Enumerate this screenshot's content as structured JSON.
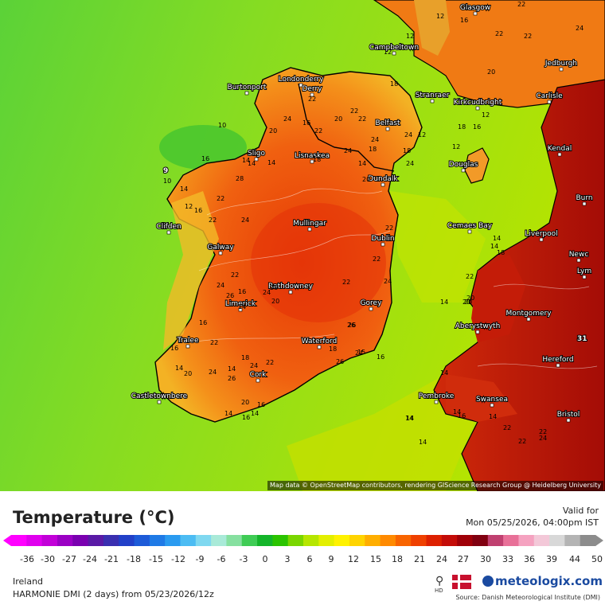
{
  "legend": {
    "title": "Temperature (°C)",
    "valid_label": "Valid for",
    "valid_time": "Mon 05/25/2026, 04:00pm IST",
    "ticks": [
      "-36",
      "-30",
      "-27",
      "-24",
      "-21",
      "-18",
      "-15",
      "-12",
      "-9",
      "-6",
      "-3",
      "0",
      "3",
      "6",
      "9",
      "12",
      "15",
      "18",
      "21",
      "24",
      "27",
      "30",
      "33",
      "36",
      "39",
      "44",
      "50"
    ],
    "colors": [
      "#ff00ff",
      "#e000ee",
      "#c200d8",
      "#9b00c4",
      "#7a00b0",
      "#5a1aa6",
      "#3a2fb0",
      "#2240c8",
      "#1d5bd8",
      "#1f7ae6",
      "#2a9bf0",
      "#4cbcf3",
      "#7fd8f0",
      "#a9ead8",
      "#86e0a0",
      "#3fcc55",
      "#14b52a",
      "#2bc400",
      "#7ad600",
      "#b6e600",
      "#e3ef00",
      "#fff200",
      "#ffd400",
      "#ffae00",
      "#ff8a00",
      "#f86400",
      "#ef4000",
      "#dd2000",
      "#c40c08",
      "#a00008",
      "#800010",
      "#c04070",
      "#e87098",
      "#f5a2c0",
      "#f3c8d8",
      "#d8d8d8",
      "#b4b4b4",
      "#8c8c8c"
    ],
    "region": "Ireland",
    "model": "HARMONIE DMI (2 days)  from  05/23/2026/12z",
    "hd_label": "HD",
    "brand": "meteologix.com",
    "source": "Source: Danish Meteorological Institute (DMI)"
  },
  "map": {
    "attribution": "Map data © OpenStreetMap contributors, rendering GIScience Research Group @ Heidelberg University",
    "places": [
      {
        "name": "Glasgow"
      },
      {
        "name": "Campbeltown"
      },
      {
        "name": "Jedburgh"
      },
      {
        "name": "Burtonport"
      },
      {
        "name": "Londonderry"
      },
      {
        "name": "Derry"
      },
      {
        "name": "Stranraer"
      },
      {
        "name": "Kirkcudbright"
      },
      {
        "name": "Carlisle"
      },
      {
        "name": "Belfast"
      },
      {
        "name": "Sligo"
      },
      {
        "name": "Lisnaskea"
      },
      {
        "name": "Kendal"
      },
      {
        "name": "Douglas"
      },
      {
        "name": "Dundalk"
      },
      {
        "name": "Clifden"
      },
      {
        "name": "Mullingar"
      },
      {
        "name": "Dublin"
      },
      {
        "name": "Cemaes Bay"
      },
      {
        "name": "Liverpool"
      },
      {
        "name": "Galway"
      },
      {
        "name": "Newc"
      },
      {
        "name": "Lym"
      },
      {
        "name": "Burn"
      },
      {
        "name": "Rathdowney"
      },
      {
        "name": "Limerick"
      },
      {
        "name": "Gorey"
      },
      {
        "name": "Montgomery"
      },
      {
        "name": "Aberystwyth"
      },
      {
        "name": "Tralee"
      },
      {
        "name": "Waterford"
      },
      {
        "name": "Hereford"
      },
      {
        "name": "Cork"
      },
      {
        "name": "Castletownbere"
      },
      {
        "name": "Pembroke"
      },
      {
        "name": "Swansea"
      },
      {
        "name": "Bristol"
      }
    ],
    "isotherm_labels": [
      "12",
      "12",
      "12",
      "22",
      "24",
      "22",
      "16",
      "18",
      "20",
      "22",
      "20",
      "22",
      "22",
      "18",
      "24",
      "12",
      "18",
      "24",
      "16",
      "12",
      "22",
      "12",
      "10",
      "24",
      "16",
      "20",
      "24",
      "22",
      "14",
      "14",
      "16",
      "28",
      "14",
      "10",
      "22",
      "14",
      "12",
      "22",
      "16",
      "24",
      "14",
      "22",
      "22",
      "20",
      "18",
      "14",
      "18",
      "24",
      "14",
      "18",
      "20",
      "28",
      "24",
      "20",
      "16",
      "22",
      "16",
      "14",
      "26",
      "26",
      "18",
      "24",
      "20",
      "22",
      "18",
      "14",
      "14",
      "14",
      "20",
      "16",
      "16",
      "26",
      "22",
      "16",
      "14",
      "24",
      "14",
      "15",
      "16",
      "20",
      "22",
      "24",
      "22",
      "26",
      "24",
      "24",
      "14",
      "20",
      "26",
      "14",
      "22",
      "14",
      "22",
      "14",
      "16",
      "22",
      "24",
      "14",
      "14"
    ],
    "point_values": [
      "9",
      "31"
    ]
  }
}
